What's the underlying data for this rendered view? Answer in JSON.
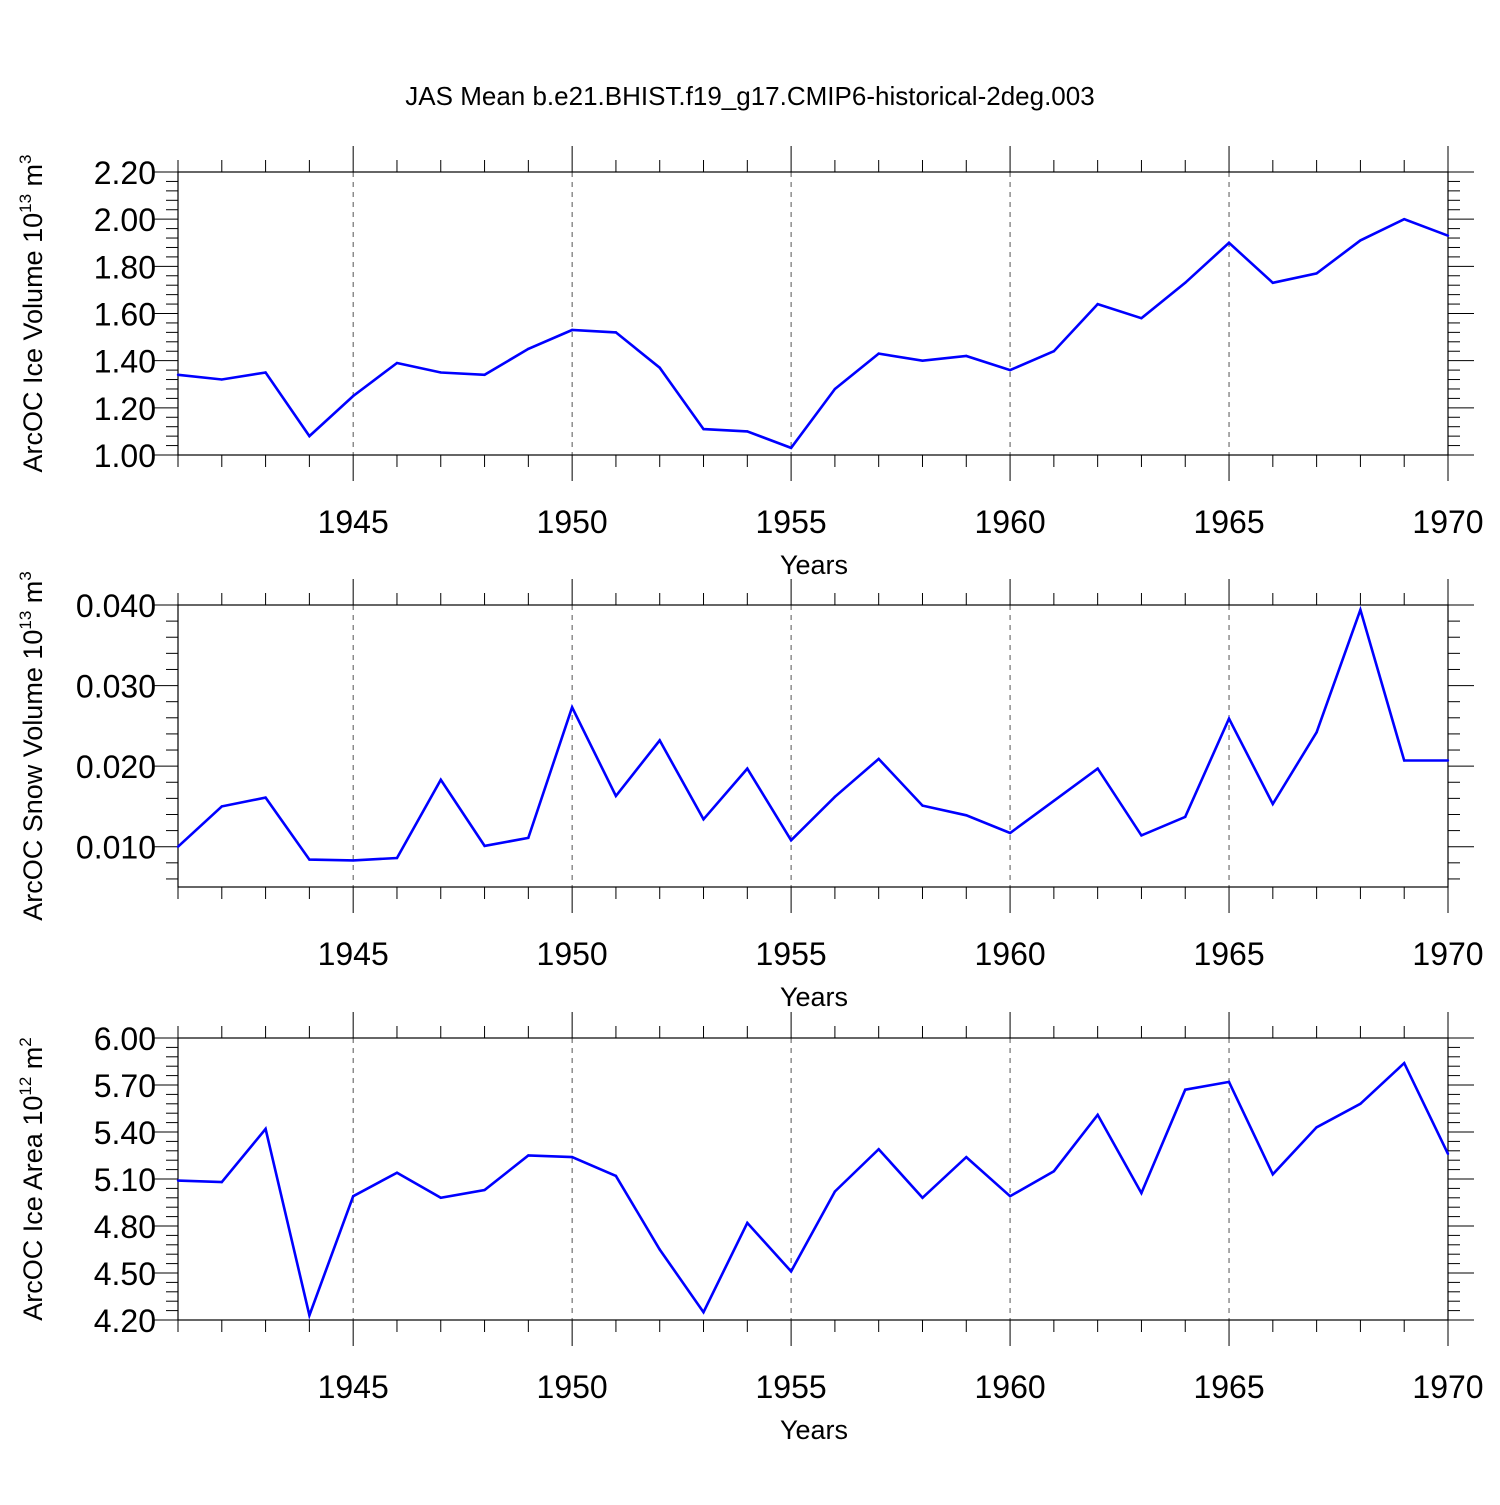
{
  "title": "JAS Mean b.e21.BHIST.f19_g17.CMIP6-historical-2deg.003",
  "colors": {
    "line": "#0000ff",
    "axis": "#000000",
    "grid": "#555555"
  },
  "chart_data": [
    {
      "type": "line",
      "title": "",
      "xlabel": "Years",
      "ylabel_parts": [
        "ArcOC Ice Volume 10",
        "13",
        " m",
        "3"
      ],
      "grid": "vertical dashed at major x ticks",
      "xlim": [
        1941,
        1970
      ],
      "ylim": [
        1.0,
        2.2
      ],
      "x_ticks": [
        "1945",
        "1950",
        "1955",
        "1960",
        "1965",
        "1970"
      ],
      "y_ticks": [
        "1.00",
        "1.20",
        "1.40",
        "1.60",
        "1.80",
        "2.00",
        "2.20"
      ],
      "x": [
        1941,
        1942,
        1943,
        1944,
        1945,
        1946,
        1947,
        1948,
        1949,
        1950,
        1951,
        1952,
        1953,
        1954,
        1955,
        1956,
        1957,
        1958,
        1959,
        1960,
        1961,
        1962,
        1963,
        1964,
        1965,
        1966,
        1967,
        1968,
        1969,
        1970
      ],
      "series": [
        {
          "values": [
            1.34,
            1.32,
            1.35,
            1.08,
            1.25,
            1.39,
            1.35,
            1.34,
            1.45,
            1.53,
            1.52,
            1.37,
            1.11,
            1.1,
            1.03,
            1.28,
            1.43,
            1.4,
            1.42,
            1.36,
            1.44,
            1.64,
            1.58,
            1.73,
            1.9,
            1.73,
            1.77,
            1.91,
            2.0,
            1.93
          ]
        }
      ]
    },
    {
      "type": "line",
      "title": "",
      "xlabel": "Years",
      "ylabel_parts": [
        "ArcOC Snow Volume 10",
        "13",
        " m",
        "3"
      ],
      "grid": "vertical dashed at major x ticks",
      "xlim": [
        1941,
        1970
      ],
      "ylim": [
        0.005,
        0.04
      ],
      "x_ticks": [
        "1945",
        "1950",
        "1955",
        "1960",
        "1965",
        "1970"
      ],
      "y_ticks": [
        "0.010",
        "0.020",
        "0.030",
        "0.040"
      ],
      "x": [
        1941,
        1942,
        1943,
        1944,
        1945,
        1946,
        1947,
        1948,
        1949,
        1950,
        1951,
        1952,
        1953,
        1954,
        1955,
        1956,
        1957,
        1958,
        1959,
        1960,
        1961,
        1962,
        1963,
        1964,
        1965,
        1966,
        1967,
        1968,
        1969,
        1970
      ],
      "series": [
        {
          "values": [
            0.01,
            0.015,
            0.0161,
            0.0084,
            0.0083,
            0.0086,
            0.0183,
            0.0101,
            0.0111,
            0.0273,
            0.0163,
            0.0232,
            0.0134,
            0.0197,
            0.0108,
            0.0162,
            0.0209,
            0.0151,
            0.0139,
            0.0117,
            0.0157,
            0.0197,
            0.0114,
            0.0137,
            0.0259,
            0.0153,
            0.0242,
            0.0394,
            0.0207,
            0.0207
          ]
        }
      ]
    },
    {
      "type": "line",
      "title": "",
      "xlabel": "Years",
      "ylabel_parts": [
        "ArcOC Ice Area 10",
        "12",
        " m",
        "2"
      ],
      "grid": "vertical dashed at major x ticks",
      "xlim": [
        1941,
        1970
      ],
      "ylim": [
        4.2,
        6.0
      ],
      "x_ticks": [
        "1945",
        "1950",
        "1955",
        "1960",
        "1965",
        "1970"
      ],
      "y_ticks": [
        "4.20",
        "4.50",
        "4.80",
        "5.10",
        "5.40",
        "5.70",
        "6.00"
      ],
      "x": [
        1941,
        1942,
        1943,
        1944,
        1945,
        1946,
        1947,
        1948,
        1949,
        1950,
        1951,
        1952,
        1953,
        1954,
        1955,
        1956,
        1957,
        1958,
        1959,
        1960,
        1961,
        1962,
        1963,
        1964,
        1965,
        1966,
        1967,
        1968,
        1969,
        1970
      ],
      "series": [
        {
          "values": [
            5.09,
            5.08,
            5.42,
            4.23,
            4.99,
            5.14,
            4.98,
            5.03,
            5.25,
            5.24,
            5.12,
            4.65,
            4.25,
            4.82,
            4.51,
            5.02,
            5.29,
            4.98,
            5.24,
            4.99,
            5.15,
            5.51,
            5.01,
            5.67,
            5.72,
            5.13,
            5.43,
            5.58,
            5.84,
            5.26
          ]
        }
      ]
    }
  ]
}
